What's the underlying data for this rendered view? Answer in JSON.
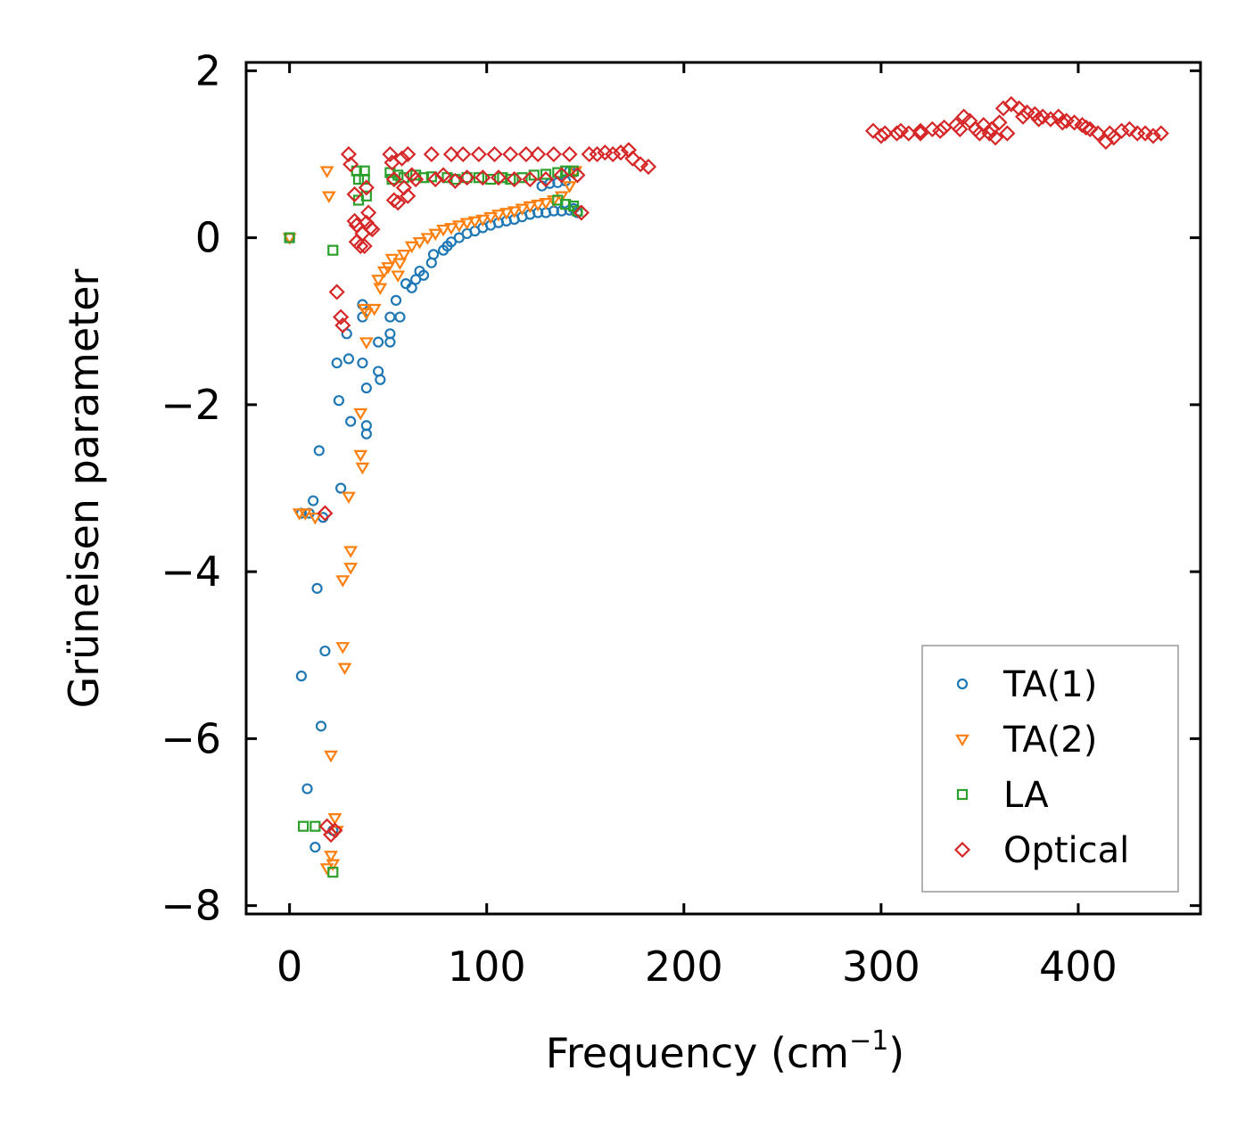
{
  "chart_data": {
    "type": "scatter",
    "title": "",
    "xlabel": "Frequency (cm",
    "xlabel_sup": "−1",
    "xlabel_end": ")",
    "ylabel": "Grüneisen parameter",
    "xlim": [
      -22,
      462
    ],
    "ylim": [
      -8.1,
      2.1
    ],
    "xticks": [
      0,
      100,
      200,
      300,
      400
    ],
    "xtick_labels": [
      "0",
      "100",
      "200",
      "300",
      "400"
    ],
    "yticks": [
      2,
      0,
      -2,
      -4,
      -6,
      -8
    ],
    "ytick_labels": [
      "2",
      "0",
      "−2",
      "−4",
      "−6",
      "−8"
    ],
    "tick_direction": "in",
    "ticks_on_all_sides": true,
    "grid": false,
    "legend_position": "bottom-right",
    "series": [
      {
        "name": "TA(1)",
        "marker": "circle",
        "color": "#1f77b4",
        "points": [
          [
            0,
            0.0
          ],
          [
            6,
            -3.3
          ],
          [
            10,
            -3.3
          ],
          [
            12,
            -3.15
          ],
          [
            14,
            -4.2
          ],
          [
            15,
            -2.55
          ],
          [
            16,
            -5.85
          ],
          [
            17,
            -3.35
          ],
          [
            6,
            -5.25
          ],
          [
            9,
            -6.6
          ],
          [
            13,
            -7.3
          ],
          [
            18,
            -4.95
          ],
          [
            22,
            -7.1
          ],
          [
            24,
            -1.5
          ],
          [
            25,
            -1.95
          ],
          [
            26,
            -3.0
          ],
          [
            29,
            -1.15
          ],
          [
            30,
            -1.45
          ],
          [
            31,
            -2.2
          ],
          [
            37,
            -0.8
          ],
          [
            37,
            -0.95
          ],
          [
            37,
            -1.5
          ],
          [
            39,
            -1.8
          ],
          [
            39,
            -2.25
          ],
          [
            39,
            -2.35
          ],
          [
            45,
            -1.25
          ],
          [
            45,
            -1.6
          ],
          [
            46,
            -1.7
          ],
          [
            51,
            -0.95
          ],
          [
            51,
            -1.15
          ],
          [
            51,
            -1.25
          ],
          [
            54,
            -0.75
          ],
          [
            56,
            -0.95
          ],
          [
            59,
            -0.55
          ],
          [
            62,
            -0.6
          ],
          [
            64,
            -0.5
          ],
          [
            66,
            -0.4
          ],
          [
            68,
            -0.45
          ],
          [
            72,
            -0.3
          ],
          [
            73,
            -0.2
          ],
          [
            78,
            -0.15
          ],
          [
            80,
            -0.1
          ],
          [
            82,
            -0.05
          ],
          [
            86,
            0.0
          ],
          [
            90,
            0.05
          ],
          [
            94,
            0.08
          ],
          [
            98,
            0.12
          ],
          [
            102,
            0.15
          ],
          [
            106,
            0.18
          ],
          [
            110,
            0.2
          ],
          [
            114,
            0.22
          ],
          [
            118,
            0.25
          ],
          [
            122,
            0.28
          ],
          [
            126,
            0.3
          ],
          [
            130,
            0.3
          ],
          [
            134,
            0.32
          ],
          [
            138,
            0.32
          ],
          [
            142,
            0.33
          ],
          [
            144,
            0.35
          ],
          [
            146,
            0.3
          ],
          [
            128,
            0.62
          ],
          [
            132,
            0.65
          ],
          [
            136,
            0.66
          ],
          [
            140,
            0.68
          ],
          [
            142,
            0.8
          ],
          [
            144,
            0.78
          ]
        ]
      },
      {
        "name": "TA(2)",
        "marker": "triangle-down",
        "color": "#ff7f0e",
        "points": [
          [
            0,
            0.0
          ],
          [
            5,
            -3.3
          ],
          [
            8,
            -3.3
          ],
          [
            13,
            -3.35
          ],
          [
            19,
            0.8
          ],
          [
            20,
            0.5
          ],
          [
            21,
            -6.2
          ],
          [
            19,
            -7.55
          ],
          [
            21,
            -7.4
          ],
          [
            23,
            -6.95
          ],
          [
            24,
            -7.1
          ],
          [
            22,
            -7.5
          ],
          [
            27,
            -4.1
          ],
          [
            27,
            -4.9
          ],
          [
            28,
            -5.15
          ],
          [
            30,
            -3.1
          ],
          [
            31,
            -3.75
          ],
          [
            31,
            -3.95
          ],
          [
            36,
            -2.1
          ],
          [
            36,
            -2.6
          ],
          [
            37,
            -2.75
          ],
          [
            38,
            -0.85
          ],
          [
            39,
            -0.9
          ],
          [
            39,
            -1.25
          ],
          [
            43,
            -0.85
          ],
          [
            45,
            -0.5
          ],
          [
            46,
            -0.6
          ],
          [
            48,
            -0.4
          ],
          [
            50,
            -0.35
          ],
          [
            52,
            -0.25
          ],
          [
            55,
            -0.45
          ],
          [
            56,
            -0.3
          ],
          [
            58,
            -0.2
          ],
          [
            62,
            -0.1
          ],
          [
            66,
            -0.05
          ],
          [
            70,
            0.0
          ],
          [
            74,
            0.05
          ],
          [
            78,
            0.1
          ],
          [
            82,
            0.12
          ],
          [
            86,
            0.15
          ],
          [
            90,
            0.18
          ],
          [
            94,
            0.2
          ],
          [
            98,
            0.22
          ],
          [
            102,
            0.25
          ],
          [
            106,
            0.28
          ],
          [
            110,
            0.3
          ],
          [
            114,
            0.32
          ],
          [
            118,
            0.35
          ],
          [
            122,
            0.38
          ],
          [
            126,
            0.4
          ],
          [
            130,
            0.42
          ],
          [
            134,
            0.45
          ],
          [
            138,
            0.5
          ],
          [
            142,
            0.62
          ],
          [
            145,
            0.8
          ]
        ]
      },
      {
        "name": "LA",
        "marker": "square",
        "color": "#2ca02c",
        "points": [
          [
            0,
            0.0
          ],
          [
            7,
            -7.05
          ],
          [
            13,
            -7.05
          ],
          [
            22,
            -7.6
          ],
          [
            22,
            -0.15
          ],
          [
            34,
            0.8
          ],
          [
            35,
            0.7
          ],
          [
            35,
            0.45
          ],
          [
            38,
            0.8
          ],
          [
            38,
            0.7
          ],
          [
            39,
            0.5
          ],
          [
            51,
            0.78
          ],
          [
            52,
            0.7
          ],
          [
            55,
            0.75
          ],
          [
            58,
            0.72
          ],
          [
            64,
            0.75
          ],
          [
            68,
            0.72
          ],
          [
            72,
            0.73
          ],
          [
            80,
            0.72
          ],
          [
            84,
            0.7
          ],
          [
            90,
            0.72
          ],
          [
            96,
            0.72
          ],
          [
            102,
            0.7
          ],
          [
            108,
            0.72
          ],
          [
            112,
            0.7
          ],
          [
            118,
            0.72
          ],
          [
            124,
            0.75
          ],
          [
            130,
            0.76
          ],
          [
            136,
            0.78
          ],
          [
            140,
            0.8
          ],
          [
            144,
            0.8
          ],
          [
            136,
            0.45
          ],
          [
            140,
            0.4
          ],
          [
            144,
            0.38
          ],
          [
            146,
            0.32
          ]
        ]
      },
      {
        "name": "Optical",
        "marker": "diamond",
        "color": "#d62728",
        "points": [
          [
            18,
            -3.3
          ],
          [
            19,
            -7.05
          ],
          [
            21,
            -7.15
          ],
          [
            23,
            -7.1
          ],
          [
            24,
            -0.65
          ],
          [
            26,
            -0.95
          ],
          [
            27,
            -1.05
          ],
          [
            30,
            1.0
          ],
          [
            31,
            0.88
          ],
          [
            33,
            0.52
          ],
          [
            33,
            0.2
          ],
          [
            34,
            0.15
          ],
          [
            34,
            -0.05
          ],
          [
            36,
            -0.1
          ],
          [
            37,
            0.05
          ],
          [
            38,
            -0.1
          ],
          [
            39,
            0.18
          ],
          [
            40,
            0.3
          ],
          [
            41,
            0.12
          ],
          [
            42,
            0.1
          ],
          [
            39,
            0.6
          ],
          [
            51,
            1.0
          ],
          [
            52,
            0.9
          ],
          [
            53,
            0.7
          ],
          [
            53,
            0.45
          ],
          [
            55,
            0.42
          ],
          [
            57,
            0.95
          ],
          [
            58,
            0.6
          ],
          [
            60,
            0.5
          ],
          [
            60,
            1.0
          ],
          [
            62,
            0.75
          ],
          [
            64,
            0.7
          ],
          [
            72,
            1.0
          ],
          [
            74,
            0.7
          ],
          [
            78,
            0.75
          ],
          [
            82,
            1.0
          ],
          [
            84,
            0.68
          ],
          [
            88,
            1.0
          ],
          [
            90,
            0.72
          ],
          [
            96,
            1.0
          ],
          [
            98,
            0.72
          ],
          [
            104,
            1.0
          ],
          [
            106,
            0.72
          ],
          [
            112,
            1.0
          ],
          [
            114,
            0.7
          ],
          [
            120,
            1.0
          ],
          [
            122,
            0.7
          ],
          [
            126,
            1.0
          ],
          [
            130,
            0.7
          ],
          [
            134,
            1.0
          ],
          [
            138,
            0.75
          ],
          [
            142,
            1.0
          ],
          [
            146,
            0.75
          ],
          [
            148,
            0.3
          ],
          [
            152,
            1.0
          ],
          [
            156,
            1.0
          ],
          [
            160,
            1.02
          ],
          [
            164,
            1.0
          ],
          [
            168,
            1.02
          ],
          [
            172,
            1.05
          ],
          [
            174,
            0.95
          ],
          [
            178,
            0.88
          ],
          [
            182,
            0.85
          ],
          [
            296,
            1.28
          ],
          [
            302,
            1.25
          ],
          [
            308,
            1.25
          ],
          [
            314,
            1.25
          ],
          [
            320,
            1.28
          ],
          [
            326,
            1.3
          ],
          [
            332,
            1.32
          ],
          [
            338,
            1.35
          ],
          [
            342,
            1.45
          ],
          [
            345,
            1.4
          ],
          [
            348,
            1.3
          ],
          [
            352,
            1.35
          ],
          [
            355,
            1.25
          ],
          [
            358,
            1.2
          ],
          [
            360,
            1.38
          ],
          [
            362,
            1.55
          ],
          [
            366,
            1.6
          ],
          [
            370,
            1.55
          ],
          [
            374,
            1.5
          ],
          [
            378,
            1.48
          ],
          [
            382,
            1.45
          ],
          [
            386,
            1.42
          ],
          [
            390,
            1.45
          ],
          [
            394,
            1.4
          ],
          [
            398,
            1.38
          ],
          [
            402,
            1.35
          ],
          [
            406,
            1.3
          ],
          [
            410,
            1.25
          ],
          [
            414,
            1.15
          ],
          [
            418,
            1.2
          ],
          [
            422,
            1.28
          ],
          [
            426,
            1.3
          ],
          [
            430,
            1.25
          ],
          [
            434,
            1.25
          ],
          [
            438,
            1.22
          ],
          [
            442,
            1.25
          ],
          [
            300,
            1.22
          ],
          [
            310,
            1.28
          ],
          [
            320,
            1.25
          ],
          [
            330,
            1.28
          ],
          [
            340,
            1.3
          ],
          [
            350,
            1.25
          ],
          [
            356,
            1.3
          ],
          [
            364,
            1.25
          ],
          [
            372,
            1.45
          ],
          [
            380,
            1.42
          ],
          [
            392,
            1.38
          ],
          [
            404,
            1.32
          ],
          [
            416,
            1.25
          ]
        ]
      }
    ]
  }
}
